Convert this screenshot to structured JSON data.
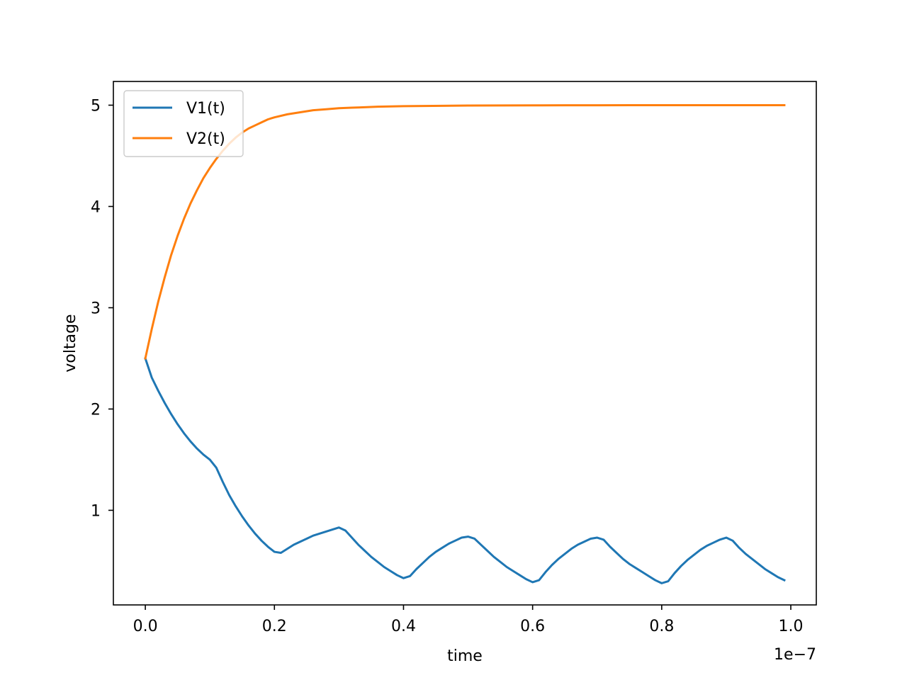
{
  "chart_data": {
    "type": "line",
    "title": "",
    "xlabel": "time",
    "ylabel": "voltage",
    "x_offset_text": "1e−7",
    "xlim": [
      -0.0495,
      1.0395
    ],
    "ylim": [
      0.0658,
      5.2342
    ],
    "xticks": [
      0.0,
      0.2,
      0.4,
      0.6,
      0.8,
      1.0
    ],
    "xtick_labels": [
      "0.0",
      "0.2",
      "0.4",
      "0.6",
      "0.8",
      "1.0"
    ],
    "yticks": [
      1,
      2,
      3,
      4,
      5
    ],
    "ytick_labels": [
      "1",
      "2",
      "3",
      "4",
      "5"
    ],
    "grid": false,
    "legend_position": "top-left",
    "series": [
      {
        "name": "V1(t)",
        "color": "#1f77b4",
        "x": [
          0.0,
          0.01,
          0.02,
          0.03,
          0.04,
          0.05,
          0.06,
          0.07,
          0.08,
          0.09,
          0.1,
          0.11,
          0.12,
          0.13,
          0.14,
          0.15,
          0.16,
          0.17,
          0.18,
          0.19,
          0.2,
          0.21,
          0.22,
          0.23,
          0.24,
          0.25,
          0.26,
          0.27,
          0.28,
          0.29,
          0.3,
          0.31,
          0.32,
          0.33,
          0.34,
          0.35,
          0.36,
          0.37,
          0.38,
          0.39,
          0.4,
          0.41,
          0.42,
          0.43,
          0.44,
          0.45,
          0.46,
          0.47,
          0.48,
          0.49,
          0.5,
          0.51,
          0.52,
          0.53,
          0.54,
          0.55,
          0.56,
          0.57,
          0.58,
          0.59,
          0.6,
          0.61,
          0.62,
          0.63,
          0.64,
          0.65,
          0.66,
          0.67,
          0.68,
          0.69,
          0.7,
          0.71,
          0.72,
          0.73,
          0.74,
          0.75,
          0.76,
          0.77,
          0.78,
          0.79,
          0.8,
          0.81,
          0.82,
          0.83,
          0.84,
          0.85,
          0.86,
          0.87,
          0.88,
          0.89,
          0.9,
          0.91,
          0.92,
          0.93,
          0.94,
          0.95,
          0.96,
          0.97,
          0.98,
          0.99
        ],
        "y": [
          2.5,
          2.31,
          2.18,
          2.06,
          1.95,
          1.85,
          1.76,
          1.68,
          1.61,
          1.55,
          1.5,
          1.42,
          1.28,
          1.15,
          1.04,
          0.94,
          0.85,
          0.77,
          0.7,
          0.64,
          0.59,
          0.58,
          0.62,
          0.66,
          0.69,
          0.72,
          0.75,
          0.77,
          0.79,
          0.81,
          0.83,
          0.8,
          0.73,
          0.66,
          0.6,
          0.54,
          0.49,
          0.44,
          0.4,
          0.36,
          0.33,
          0.35,
          0.42,
          0.48,
          0.54,
          0.59,
          0.63,
          0.67,
          0.7,
          0.73,
          0.74,
          0.72,
          0.66,
          0.6,
          0.54,
          0.49,
          0.44,
          0.4,
          0.36,
          0.32,
          0.29,
          0.31,
          0.39,
          0.46,
          0.52,
          0.57,
          0.62,
          0.66,
          0.69,
          0.72,
          0.73,
          0.71,
          0.64,
          0.58,
          0.52,
          0.47,
          0.43,
          0.39,
          0.35,
          0.31,
          0.28,
          0.3,
          0.38,
          0.45,
          0.51,
          0.56,
          0.61,
          0.65,
          0.68,
          0.71,
          0.73,
          0.7,
          0.63,
          0.57,
          0.52,
          0.47,
          0.42,
          0.38,
          0.34,
          0.31
        ]
      },
      {
        "name": "V2(t)",
        "color": "#ff7f0e",
        "x": [
          0.0,
          0.01,
          0.02,
          0.03,
          0.04,
          0.05,
          0.06,
          0.07,
          0.08,
          0.09,
          0.1,
          0.11,
          0.12,
          0.13,
          0.14,
          0.15,
          0.16,
          0.17,
          0.18,
          0.19,
          0.2,
          0.22,
          0.24,
          0.26,
          0.28,
          0.3,
          0.32,
          0.34,
          0.36,
          0.38,
          0.4,
          0.43,
          0.46,
          0.5,
          0.55,
          0.6,
          0.65,
          0.7,
          0.8,
          0.9,
          0.99
        ],
        "y": [
          2.5,
          2.79,
          3.06,
          3.3,
          3.52,
          3.71,
          3.88,
          4.03,
          4.16,
          4.28,
          4.38,
          4.47,
          4.55,
          4.62,
          4.68,
          4.73,
          4.77,
          4.8,
          4.83,
          4.86,
          4.88,
          4.91,
          4.93,
          4.95,
          4.96,
          4.97,
          4.975,
          4.98,
          4.985,
          4.988,
          4.99,
          4.992,
          4.994,
          4.996,
          4.997,
          4.998,
          4.999,
          4.999,
          5.0,
          5.0,
          5.0
        ]
      }
    ]
  }
}
